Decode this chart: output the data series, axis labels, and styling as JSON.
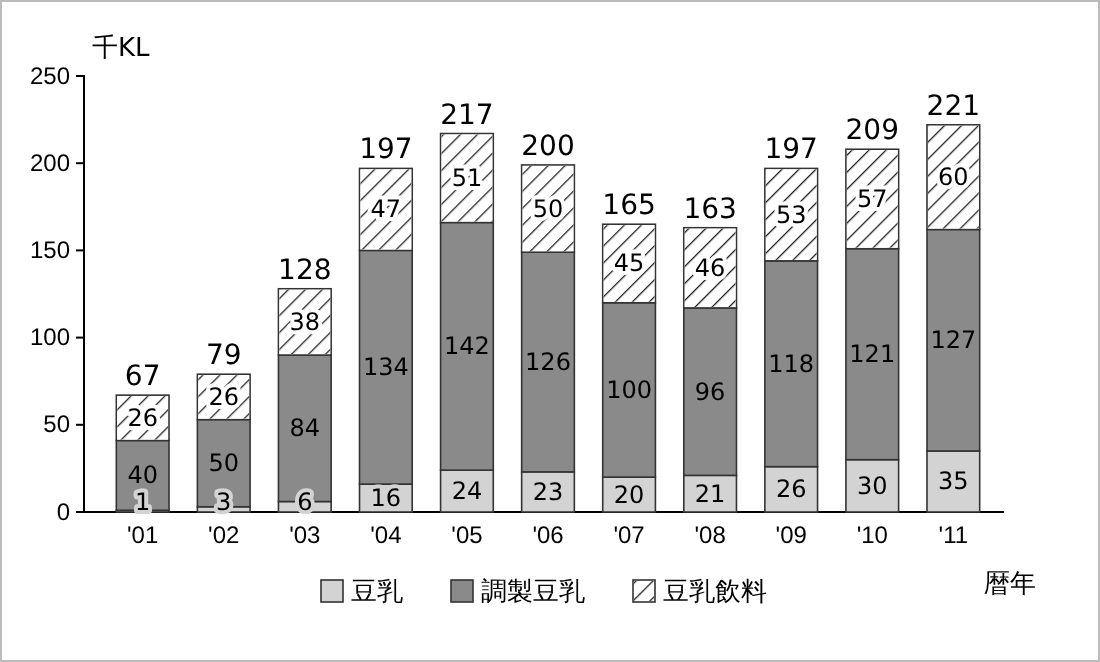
{
  "chart_data": {
    "type": "bar",
    "stacked": true,
    "ylabel": "千KL",
    "xlabel": "暦年",
    "categories": [
      "'01",
      "'02",
      "'03",
      "'04",
      "'05",
      "'06",
      "'07",
      "'08",
      "'09",
      "'10",
      "'11"
    ],
    "series": [
      {
        "name": "豆乳",
        "color": "#d3d3d3",
        "values": [
          1,
          3,
          6,
          16,
          24,
          23,
          20,
          21,
          26,
          30,
          35
        ]
      },
      {
        "name": "調製豆乳",
        "color": "#8a8a8a",
        "values": [
          40,
          50,
          84,
          134,
          142,
          126,
          100,
          96,
          118,
          121,
          127
        ]
      },
      {
        "name": "豆乳飲料",
        "color": "#ffffff",
        "values": [
          26,
          26,
          38,
          47,
          51,
          50,
          45,
          46,
          53,
          57,
          60
        ]
      }
    ],
    "totals": [
      "67",
      "79",
      "128",
      "197",
      "217",
      "200",
      "165",
      "163",
      "197",
      "209",
      "221"
    ],
    "data_labels": true,
    "ylim": [
      0,
      250
    ],
    "yticks": [
      0,
      50,
      100,
      150,
      200,
      250
    ],
    "grid": false,
    "legend": "bottom"
  }
}
